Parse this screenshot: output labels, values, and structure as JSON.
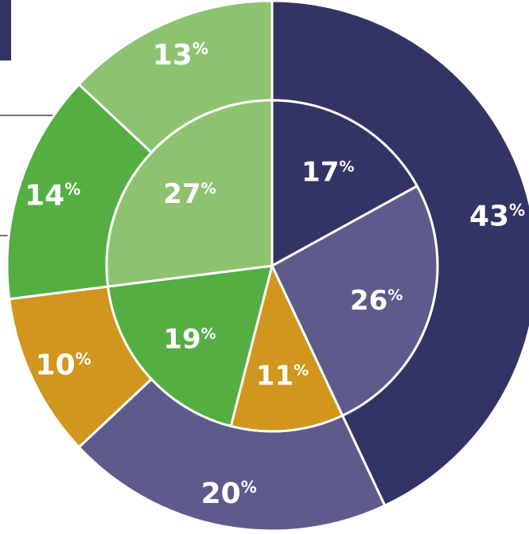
{
  "chart_data": {
    "type": "pie",
    "rings": [
      {
        "name": "",
        "slices": [
          {
            "value": 43,
            "label": "43%",
            "color": "#333466"
          },
          {
            "value": 20,
            "label": "20%",
            "color": "#5e5b8c"
          },
          {
            "value": 10,
            "label": "10%",
            "color": "#d0961e"
          },
          {
            "value": 14,
            "label": "14%",
            "color": "#55ae42"
          },
          {
            "value": 13,
            "label": "13%",
            "color": "#8dc370"
          }
        ]
      },
      {
        "name": "",
        "slices": [
          {
            "value": 17,
            "label": "17%",
            "color": "#333466"
          },
          {
            "value": 26,
            "label": "26%",
            "color": "#5e5b8c"
          },
          {
            "value": 11,
            "label": "11%",
            "color": "#d0961e"
          },
          {
            "value": 19,
            "label": "19%",
            "color": "#55ae42"
          },
          {
            "value": 27,
            "label": "27%",
            "color": "#8dc370"
          }
        ]
      }
    ],
    "label_color": "#ffffff",
    "separator_color": "#ffffff"
  }
}
